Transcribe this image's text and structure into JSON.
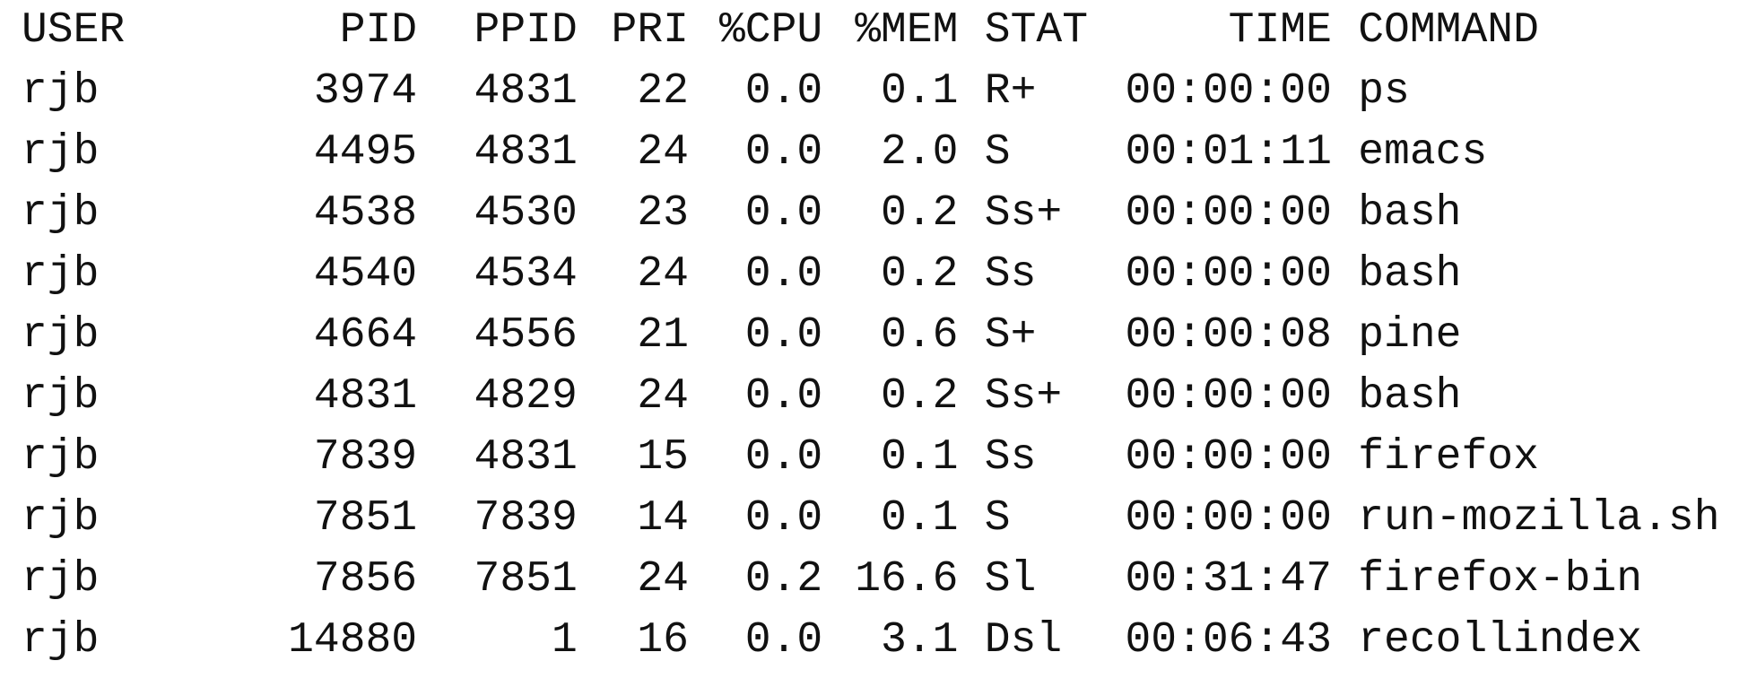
{
  "ps": {
    "headers": {
      "user": "USER",
      "pid": "PID",
      "ppid": "PPID",
      "pri": "PRI",
      "cpu": "%CPU",
      "mem": "%MEM",
      "stat": "STAT",
      "time": "TIME",
      "command": "COMMAND"
    },
    "rows": [
      {
        "user": "rjb",
        "pid": "3974",
        "ppid": "4831",
        "pri": "22",
        "cpu": "0.0",
        "mem": "0.1",
        "stat": "R+",
        "time": "00:00:00",
        "command": "ps"
      },
      {
        "user": "rjb",
        "pid": "4495",
        "ppid": "4831",
        "pri": "24",
        "cpu": "0.0",
        "mem": "2.0",
        "stat": "S",
        "time": "00:01:11",
        "command": "emacs"
      },
      {
        "user": "rjb",
        "pid": "4538",
        "ppid": "4530",
        "pri": "23",
        "cpu": "0.0",
        "mem": "0.2",
        "stat": "Ss+",
        "time": "00:00:00",
        "command": "bash"
      },
      {
        "user": "rjb",
        "pid": "4540",
        "ppid": "4534",
        "pri": "24",
        "cpu": "0.0",
        "mem": "0.2",
        "stat": "Ss",
        "time": "00:00:00",
        "command": "bash"
      },
      {
        "user": "rjb",
        "pid": "4664",
        "ppid": "4556",
        "pri": "21",
        "cpu": "0.0",
        "mem": "0.6",
        "stat": "S+",
        "time": "00:00:08",
        "command": "pine"
      },
      {
        "user": "rjb",
        "pid": "4831",
        "ppid": "4829",
        "pri": "24",
        "cpu": "0.0",
        "mem": "0.2",
        "stat": "Ss+",
        "time": "00:00:00",
        "command": "bash"
      },
      {
        "user": "rjb",
        "pid": "7839",
        "ppid": "4831",
        "pri": "15",
        "cpu": "0.0",
        "mem": "0.1",
        "stat": "Ss",
        "time": "00:00:00",
        "command": "firefox"
      },
      {
        "user": "rjb",
        "pid": "7851",
        "ppid": "7839",
        "pri": "14",
        "cpu": "0.0",
        "mem": "0.1",
        "stat": "S",
        "time": "00:00:00",
        "command": "run-mozilla.sh"
      },
      {
        "user": "rjb",
        "pid": "7856",
        "ppid": "7851",
        "pri": "24",
        "cpu": "0.2",
        "mem": "16.6",
        "stat": "Sl",
        "time": "00:31:47",
        "command": "firefox-bin"
      },
      {
        "user": "rjb",
        "pid": "14880",
        "ppid": "1",
        "pri": "16",
        "cpu": "0.0",
        "mem": "3.1",
        "stat": "Dsl",
        "time": "00:06:43",
        "command": "recollindex"
      }
    ]
  }
}
